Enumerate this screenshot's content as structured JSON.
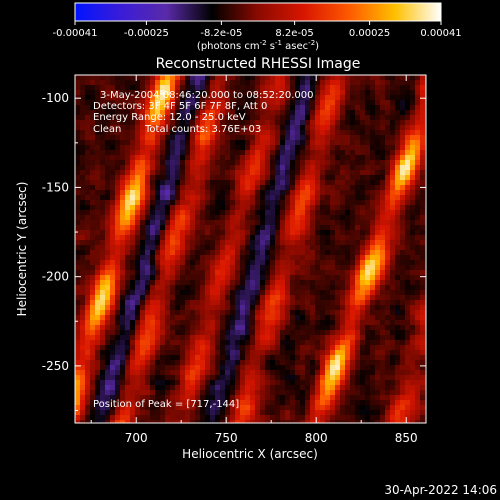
{
  "chart_data": {
    "type": "heatmap",
    "title": "Reconstructed RHESSI Image",
    "xlabel": "Heliocentric X (arcsec)",
    "ylabel": "Heliocentric Y (arcsec)",
    "xlim": [
      666,
      861
    ],
    "ylim": [
      -282,
      -87
    ],
    "x_ticks": [
      700,
      750,
      800,
      850
    ],
    "x_tick_labels": [
      "700",
      "750",
      "800",
      "850"
    ],
    "y_ticks": [
      -100,
      -150,
      -200,
      -250
    ],
    "y_tick_labels": [
      "-100",
      "-150",
      "-200",
      "-250"
    ],
    "colorbar": {
      "range": [
        -0.00041,
        0.00041
      ],
      "ticks": [
        -0.00041,
        -0.00025,
        -8.2e-05,
        8.2e-05,
        0.00025,
        0.00041
      ],
      "tick_labels": [
        "-0.00041",
        "-0.00025",
        "-8.2e-05",
        "8.2e-05",
        "0.00025",
        "0.00041"
      ],
      "units_prefix": "(photons cm",
      "units_exp1": "-2",
      "units_mid": " s",
      "units_exp2": "-1",
      "units_mid2": " asec",
      "units_exp3": "-2",
      "units_suffix": ")"
    },
    "annotations": {
      "time_range": "3-May-2004 08:46:20.000 to 08:52:20.000",
      "detectors": "Detectors: 3F 4F 5F 6F 7F 8F, Att 0",
      "energy": "Energy Range: 12.0 - 25.0 keV",
      "method": "Clean",
      "counts": "Total counts: 3.76E+03",
      "peak": "Position of Peak = [717,-144]"
    },
    "peak": {
      "x": 717,
      "y": -144
    },
    "ridges": [
      {
        "x_at_top": 718,
        "x_at_bottom": 660,
        "strength": 0.95
      },
      {
        "x_at_top": 748,
        "x_at_bottom": 692,
        "strength": 0.55
      },
      {
        "x_at_top": 780,
        "x_at_bottom": 724,
        "strength": 0.45
      },
      {
        "x_at_top": 812,
        "x_at_bottom": 758,
        "strength": 0.5
      },
      {
        "x_at_top": 868,
        "x_at_bottom": 800,
        "strength": 0.95
      },
      {
        "x_at_top": 905,
        "x_at_bottom": 845,
        "strength": 0.4
      }
    ],
    "colormap": [
      "#0014ff",
      "#3a1cd8",
      "#5a2aa8",
      "#000000",
      "#8a0a00",
      "#d81600",
      "#ff5a00",
      "#ffc000",
      "#ffffff"
    ]
  },
  "footer": {
    "timestamp": "30-Apr-2022 14:06"
  }
}
